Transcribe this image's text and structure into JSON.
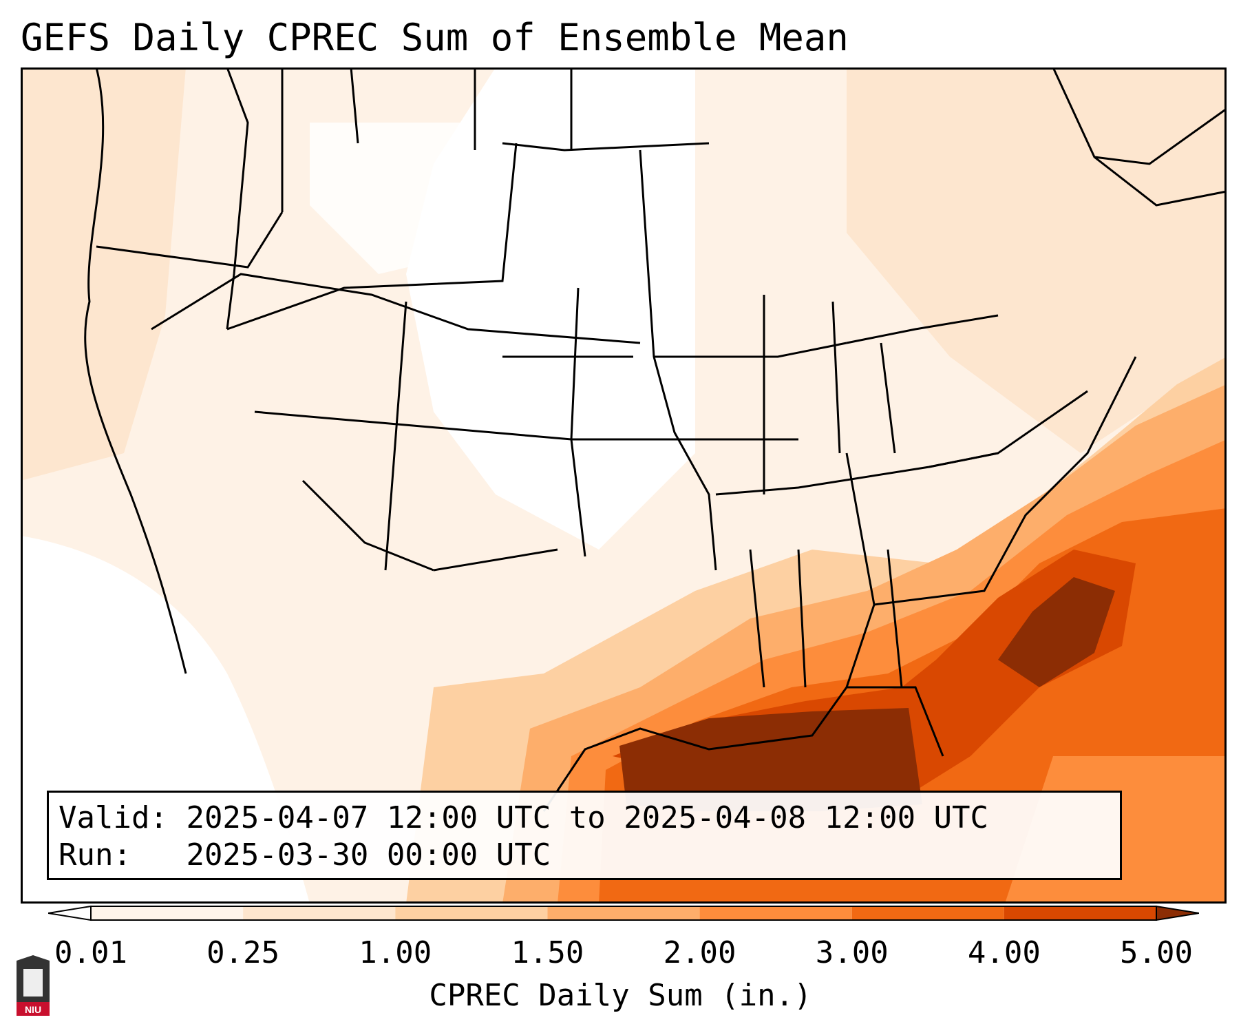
{
  "title": "GEFS Daily CPREC Sum of Ensemble Mean",
  "info": {
    "valid_label": "Valid:",
    "valid_text": "2025-04-07 12:00 UTC to 2025-04-08 12:00 UTC",
    "run_label": "Run:",
    "run_text": "2025-03-30 00:00 UTC"
  },
  "colorbar": {
    "label": "CPREC Daily Sum (in.)",
    "ticks": [
      "0.01",
      "0.25",
      "1.00",
      "1.50",
      "2.00",
      "3.00",
      "4.00",
      "5.00"
    ],
    "colors": [
      "#fff5eb",
      "#fee6ce",
      "#fdd0a2",
      "#fdae6b",
      "#fd8d3c",
      "#f16913",
      "#d94801",
      "#8c2d04"
    ]
  },
  "logo": {
    "text": "NIU"
  }
}
